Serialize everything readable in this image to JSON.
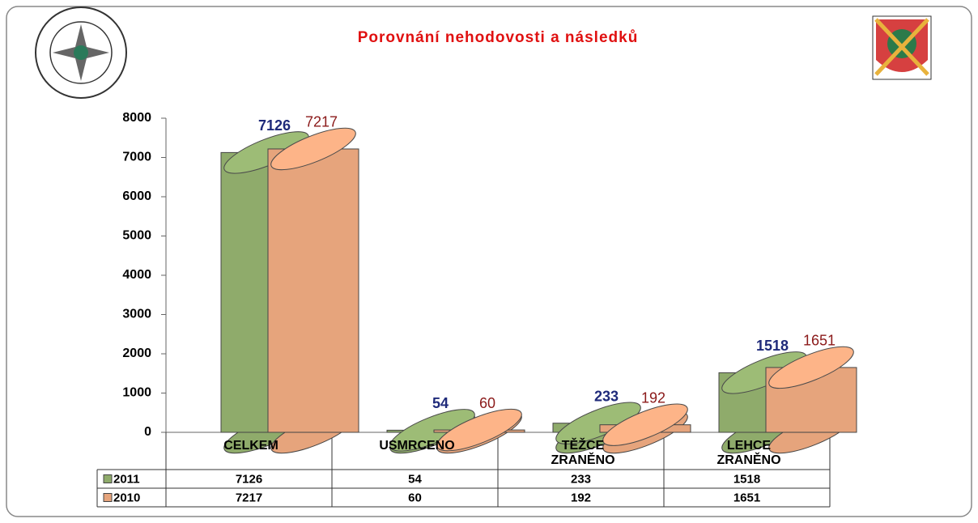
{
  "chart_data": {
    "type": "bar",
    "title": "Porovnání nehodovosti a následků",
    "categories": [
      "CELKEM",
      "USMRCENO",
      "TĚŽCE ZRANĚNO",
      "LEHCE ZRANĚNO"
    ],
    "series": [
      {
        "name": "2011",
        "color": "#8fab6b",
        "label_color": "#1f2a7a",
        "values": [
          7126,
          54,
          233,
          1518
        ]
      },
      {
        "name": "2010",
        "color": "#e6a47c",
        "label_color": "#8b1a1a",
        "values": [
          7217,
          60,
          192,
          1651
        ]
      }
    ],
    "ylim": [
      0,
      8000
    ],
    "yticks": [
      0,
      1000,
      2000,
      3000,
      4000,
      5000,
      6000,
      7000,
      8000
    ]
  }
}
